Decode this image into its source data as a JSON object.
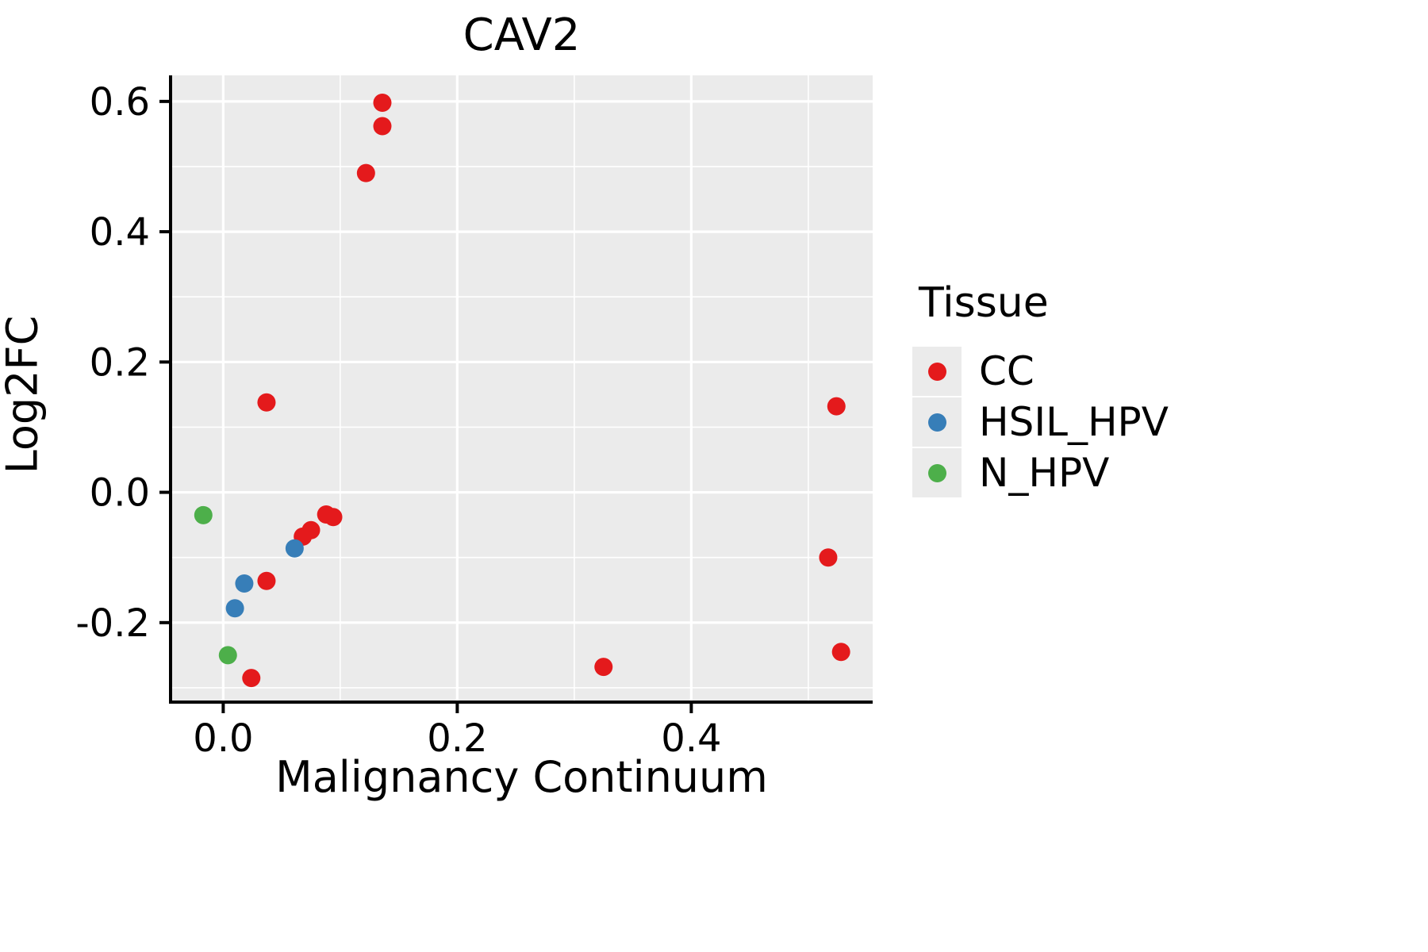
{
  "chart_data": {
    "type": "scatter",
    "title": "CAV2",
    "xlabel": "Malignancy Continuum",
    "ylabel": "Log2FC",
    "legend_title": "Tissue",
    "legend_position": "right",
    "grid": true,
    "panel_bg": "#EBEBEB",
    "grid_color": "#FFFFFF",
    "axis_color": "#000000",
    "xlim": [
      -0.045,
      0.555
    ],
    "ylim": [
      -0.322,
      0.64
    ],
    "x_ticks": [
      0.0,
      0.2,
      0.4
    ],
    "y_ticks": [
      -0.2,
      0.0,
      0.2,
      0.4,
      0.6
    ],
    "x_minor_ticks": [
      0.1,
      0.3,
      0.5
    ],
    "y_minor_ticks": [
      -0.3,
      -0.1,
      0.1,
      0.3,
      0.5
    ],
    "series": [
      {
        "name": "CC",
        "color": "#E41A1C",
        "points": [
          [
            0.136,
            0.598
          ],
          [
            0.136,
            0.562
          ],
          [
            0.122,
            0.49
          ],
          [
            0.037,
            0.138
          ],
          [
            0.524,
            0.132
          ],
          [
            0.088,
            -0.034
          ],
          [
            0.094,
            -0.038
          ],
          [
            0.075,
            -0.058
          ],
          [
            0.068,
            -0.068
          ],
          [
            0.517,
            -0.1
          ],
          [
            0.037,
            -0.136
          ],
          [
            0.024,
            -0.285
          ],
          [
            0.325,
            -0.268
          ],
          [
            0.528,
            -0.245
          ]
        ]
      },
      {
        "name": "HSIL_HPV",
        "color": "#377EB8",
        "points": [
          [
            0.061,
            -0.086
          ],
          [
            0.018,
            -0.14
          ],
          [
            0.01,
            -0.178
          ]
        ]
      },
      {
        "name": "N_HPV",
        "color": "#4DAF4A",
        "points": [
          [
            -0.017,
            -0.035
          ],
          [
            0.004,
            -0.25
          ]
        ]
      }
    ]
  }
}
